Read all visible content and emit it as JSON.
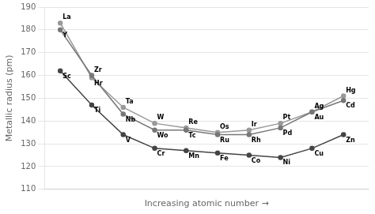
{
  "chart_data": {
    "type": "line",
    "xlabel": "Increasing atomic number →",
    "ylabel": "Metallic radius (pm)",
    "x": [
      1,
      2,
      3,
      4,
      5,
      6,
      7,
      8,
      9,
      10
    ],
    "series": [
      {
        "color": "#777777",
        "values": [
          180,
          160,
          143,
          136,
          136,
          134,
          134,
          137,
          144,
          149
        ],
        "labels": [
          "Y",
          "Zr",
          "Nb",
          "Wo",
          "Tc",
          "Ru",
          "Rh",
          "Pd",
          "Ag",
          "Cd"
        ]
      },
      {
        "color": "#999999",
        "values": [
          183,
          159,
          146,
          139,
          137,
          135,
          136,
          139,
          144,
          151
        ],
        "labels": [
          "La",
          "Hr",
          "Ta",
          "W",
          "Re",
          "Os",
          "Ir",
          "Pt",
          "Au",
          "Hg"
        ]
      },
      {
        "color": "#444444",
        "values": [
          162,
          147,
          134,
          128,
          127,
          126,
          125,
          124,
          128,
          134
        ],
        "labels": [
          "Sc",
          "Ti",
          "V",
          "Cr",
          "Mn",
          "Fe",
          "Co",
          "Ni",
          "Cu",
          "Zn"
        ]
      }
    ],
    "xlim": [
      0.5,
      10.8
    ],
    "xticks": [],
    "ylim": [
      110,
      190
    ],
    "yticks": [
      110,
      120,
      130,
      140,
      150,
      160,
      170,
      180,
      190
    ],
    "grid": true,
    "marker": "circle",
    "tick_labels": "y"
  }
}
